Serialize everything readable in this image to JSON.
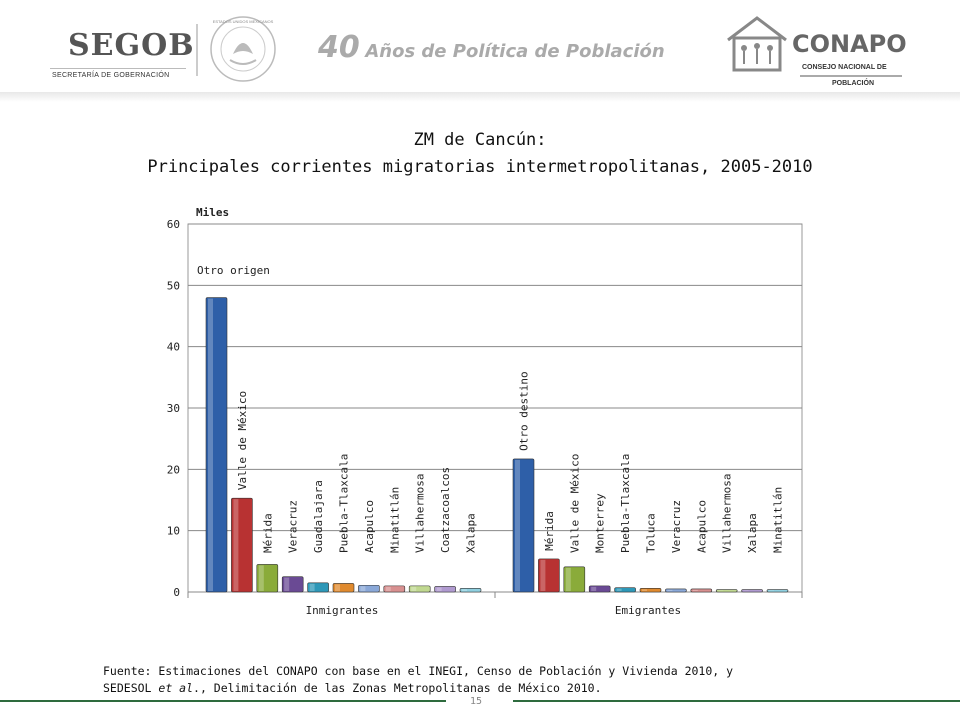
{
  "header": {
    "segob_title": "SEGOB",
    "segob_subtitle": "SECRETARÍA DE GOBERNACIÓN",
    "seal_text": "ESTADOS UNIDOS MEXICANOS",
    "anniversary_number": "40",
    "anniversary_text": "Años de Política de Población",
    "conapo_name": "CONAPO",
    "conapo_sub1": "CONSEJO NACIONAL DE",
    "conapo_sub2": "POBLACIÓN"
  },
  "title_line1": "ZM de Cancún:",
  "title_line2": "Principales corrientes migratorias intermetropolitanas, 2005-2010",
  "chart_data": {
    "type": "bar",
    "ylabel": "Miles",
    "ylim": [
      0,
      60
    ],
    "yticks": [
      0,
      10,
      20,
      30,
      40,
      50,
      60
    ],
    "grid": true,
    "groups": [
      {
        "name": "Inmigrantes",
        "bars": [
          {
            "label": "Otro origen",
            "value": 48.0,
            "color": "#2e5fa8"
          },
          {
            "label": "Valle de México",
            "value": 15.3,
            "color": "#b83232"
          },
          {
            "label": "Mérida",
            "value": 4.5,
            "color": "#8aab3a"
          },
          {
            "label": "Veracruz",
            "value": 2.5,
            "color": "#6a4a94"
          },
          {
            "label": "Guadalajara",
            "value": 1.5,
            "color": "#2e98b8"
          },
          {
            "label": "Puebla-Tlaxcala",
            "value": 1.4,
            "color": "#e08a2e"
          },
          {
            "label": "Acapulco",
            "value": 1.1,
            "color": "#8aa8d8"
          },
          {
            "label": "Minatitlán",
            "value": 1.0,
            "color": "#d89090"
          },
          {
            "label": "Villahermosa",
            "value": 1.0,
            "color": "#c0d890"
          },
          {
            "label": "Coatzacoalcos",
            "value": 0.9,
            "color": "#b09ad0"
          },
          {
            "label": "Xalapa",
            "value": 0.6,
            "color": "#90d0e0"
          }
        ]
      },
      {
        "name": "Emigrantes",
        "bars": [
          {
            "label": "Otro destino",
            "value": 21.7,
            "color": "#2e5fa8"
          },
          {
            "label": "Mérida",
            "value": 5.4,
            "color": "#b83232"
          },
          {
            "label": "Valle de México",
            "value": 4.1,
            "color": "#8aab3a"
          },
          {
            "label": "Monterrey",
            "value": 1.0,
            "color": "#6a4a94"
          },
          {
            "label": "Puebla-Tlaxcala",
            "value": 0.7,
            "color": "#2e98b8"
          },
          {
            "label": "Toluca",
            "value": 0.6,
            "color": "#e08a2e"
          },
          {
            "label": "Veracruz",
            "value": 0.5,
            "color": "#8aa8d8"
          },
          {
            "label": "Acapulco",
            "value": 0.5,
            "color": "#d89090"
          },
          {
            "label": "Villahermosa",
            "value": 0.4,
            "color": "#c0d890"
          },
          {
            "label": "Xalapa",
            "value": 0.4,
            "color": "#b09ad0"
          },
          {
            "label": "Minatitlán",
            "value": 0.4,
            "color": "#90d0e0"
          }
        ]
      }
    ]
  },
  "footer": {
    "line1": "Fuente: Estimaciones del CONAPO con base en el INEGI, Censo de Población y Vivienda 2010, y",
    "line2_pre": "SEDESOL ",
    "line2_italic": "et al",
    "line2_post": "., Delimitación de las Zonas Metropolitanas de México  2010.",
    "page_number": "15"
  }
}
